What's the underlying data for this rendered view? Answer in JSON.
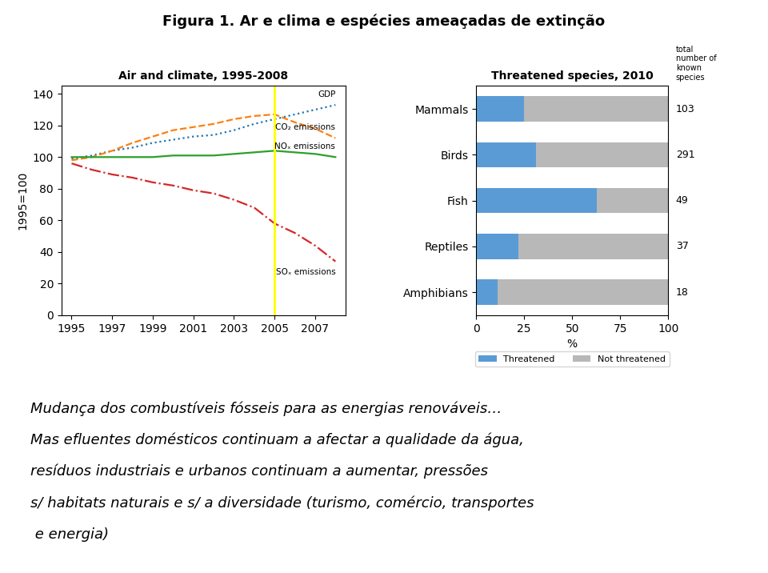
{
  "title": "Figura 1. Ar e clima e espécies ameaçadas de extinção",
  "annotations": [
    "Mudança dos combustíveis fósseis para as energias renováveis…",
    "Mas efluentes domésticos continuam a afectar a qualidade da água,",
    "resíduos industriais e urbanos continuam a aumentar, pressões",
    "s/ habitats naturais e s/ a diversidade (turismo, comércio, transportes",
    " e energia)"
  ],
  "chart_data": [
    {
      "type": "line",
      "title": "Air and climate, 1995-2008",
      "y_label": "1995=100",
      "x": [
        1995,
        1996,
        1997,
        1998,
        1999,
        2000,
        2001,
        2002,
        2003,
        2004,
        2005,
        2006,
        2007,
        2008
      ],
      "xlim": [
        1994.5,
        2008.5
      ],
      "xticks": [
        1995,
        1997,
        1999,
        2001,
        2003,
        2005,
        2007
      ],
      "ylim": [
        0,
        145
      ],
      "yticks": [
        0,
        20,
        40,
        60,
        80,
        100,
        120,
        140
      ],
      "series": [
        {
          "name": "GDP",
          "line_style": "dotted",
          "values": [
            99,
            101,
            104,
            106,
            109,
            111,
            113,
            114,
            117,
            121,
            124,
            127,
            130,
            133
          ]
        },
        {
          "name": "CO₂ emissions",
          "line_style": "dashed",
          "values": [
            98,
            100,
            104,
            109,
            113,
            117,
            119,
            121,
            124,
            126,
            127,
            122,
            118,
            112
          ]
        },
        {
          "name": "NOₓ emissions",
          "line_style": "solid",
          "values": [
            100,
            100,
            100,
            100,
            100,
            101,
            101,
            101,
            102,
            103,
            104,
            103,
            102,
            100
          ]
        },
        {
          "name": "SOₓ emissions",
          "line_style": "dashdot",
          "values": [
            96,
            92,
            89,
            87,
            84,
            82,
            79,
            77,
            73,
            68,
            58,
            52,
            44,
            34
          ]
        }
      ],
      "vline": {
        "x": 2005,
        "color": "#ffff00"
      }
    },
    {
      "type": "bar",
      "orientation": "horizontal",
      "stacked": true,
      "title": "Threatened species, 2010",
      "categories": [
        "Mammals",
        "Birds",
        "Fish",
        "Reptiles",
        "Amphibians"
      ],
      "x_label": "%",
      "xlim": [
        0,
        100
      ],
      "xticks": [
        0,
        25,
        50,
        75,
        100
      ],
      "series": [
        {
          "name": "Threatened",
          "color": "#5b9bd5",
          "values": [
            25,
            31,
            63,
            22,
            11
          ]
        },
        {
          "name": "Not threatened",
          "color": "#b8b8b8",
          "values": [
            75,
            69,
            37,
            78,
            89
          ]
        }
      ],
      "legend": "upper center",
      "totals": [
        103,
        291,
        49,
        37,
        18
      ],
      "totals_label": "total\nnumber of\nknown\nspecies"
    }
  ]
}
